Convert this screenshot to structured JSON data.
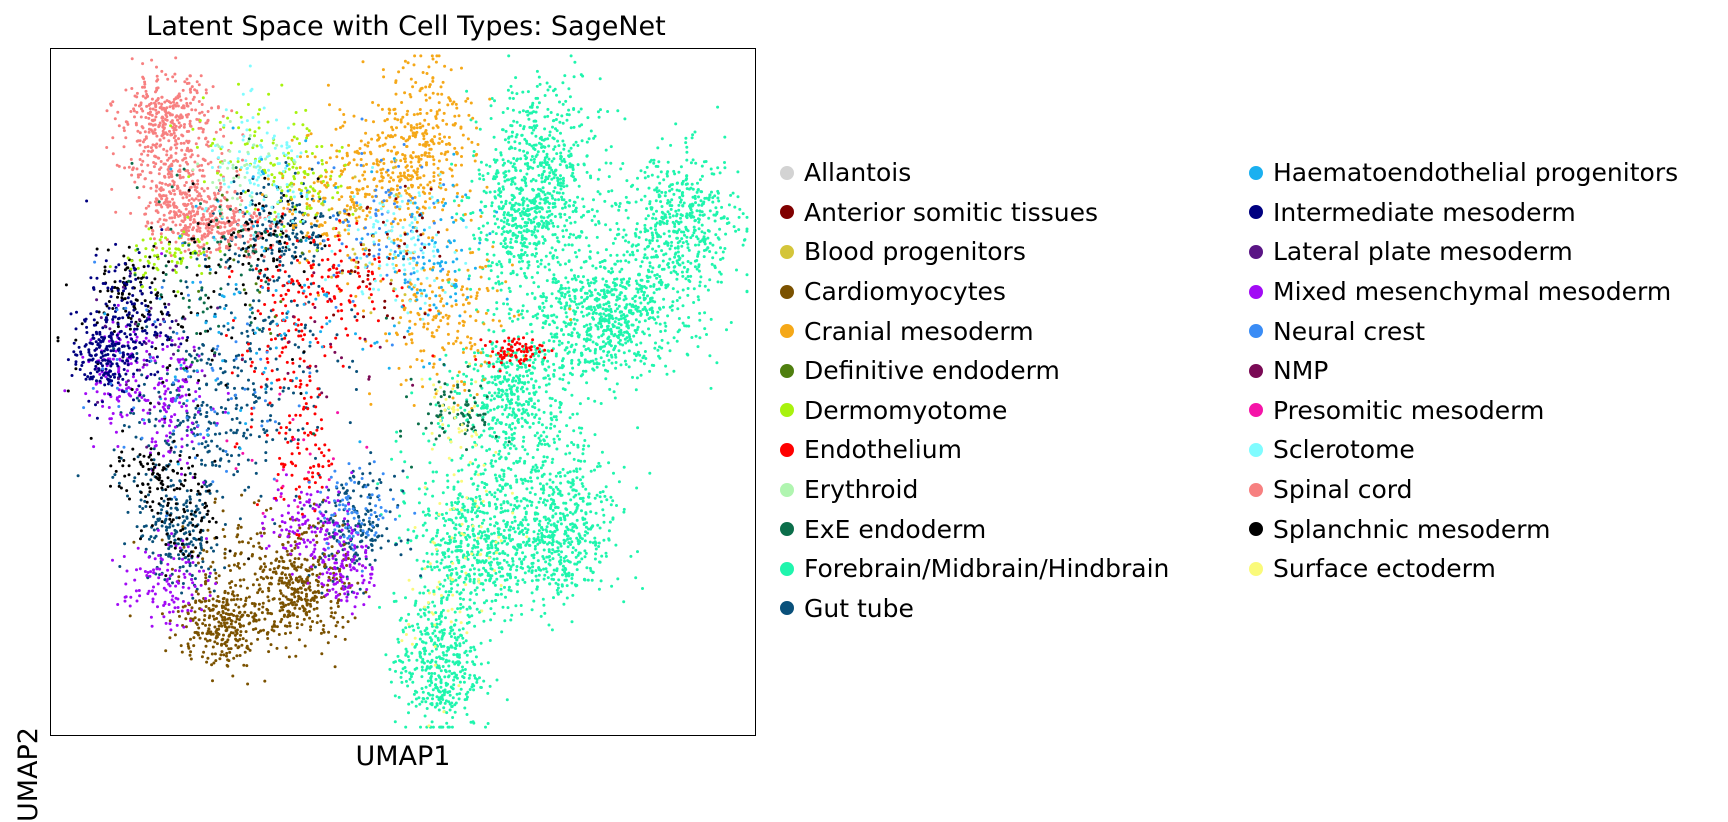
{
  "chart_data": {
    "type": "scatter",
    "title": "Latent Space with Cell Types: SageNet",
    "xlabel": "UMAP1",
    "ylabel": "UMAP2",
    "xticks": [],
    "yticks": [],
    "xlim": [
      0,
      100
    ],
    "ylim": [
      0,
      100
    ],
    "grid": false,
    "legend": "outside-right, two columns",
    "categories": [
      {
        "name": "Allantois",
        "color": "#d3d3d3",
        "n": 0,
        "clusters": []
      },
      {
        "name": "Anterior somitic tissues",
        "color": "#800000",
        "n": 40,
        "clusters": [
          [
            48,
            70,
            4,
            5
          ]
        ]
      },
      {
        "name": "Blood progenitors",
        "color": "#d4c53a",
        "n": 30,
        "clusters": [
          [
            45,
            72,
            4,
            6
          ]
        ]
      },
      {
        "name": "Cardiomyocytes",
        "color": "#7b5200",
        "n": 750,
        "clusters": [
          [
            30,
            22,
            6,
            5
          ],
          [
            24,
            16,
            3,
            3
          ],
          [
            36,
            21,
            3,
            4
          ]
        ]
      },
      {
        "name": "Cranial mesoderm",
        "color": "#f5a818",
        "n": 800,
        "clusters": [
          [
            50,
            84,
            5,
            5
          ],
          [
            42,
            78,
            5,
            5
          ],
          [
            56,
            60,
            5,
            6
          ],
          [
            54,
            88,
            3,
            6
          ]
        ]
      },
      {
        "name": "Definitive endoderm",
        "color": "#4f7f0f",
        "n": 20,
        "clusters": [
          [
            28,
            70,
            4,
            5
          ]
        ]
      },
      {
        "name": "Dermomyotome",
        "color": "#a8f20e",
        "n": 220,
        "clusters": [
          [
            29,
            86,
            5,
            5
          ],
          [
            36,
            80,
            3,
            3
          ],
          [
            17,
            70,
            3,
            2
          ]
        ]
      },
      {
        "name": "Endothelium",
        "color": "#ff0000",
        "n": 380,
        "clusters": [
          [
            36,
            41,
            2,
            5
          ],
          [
            33,
            55,
            4,
            6
          ],
          [
            43,
            66,
            4,
            5
          ],
          [
            35,
            66,
            4,
            4
          ],
          [
            66,
            56,
            2,
            1
          ]
        ]
      },
      {
        "name": "Erythroid",
        "color": "#b0f5b0",
        "n": 40,
        "clusters": [
          [
            27,
            82,
            3,
            3
          ]
        ]
      },
      {
        "name": "ExE endoderm",
        "color": "#0b6e4a",
        "n": 150,
        "clusters": [
          [
            22,
            68,
            6,
            8
          ],
          [
            58,
            47,
            3,
            3
          ]
        ]
      },
      {
        "name": "Forebrain/Midbrain/Hindbrain",
        "color": "#1ff5ad",
        "n": 4200,
        "clusters": [
          [
            70,
            84,
            4,
            6
          ],
          [
            67,
            74,
            4,
            5
          ],
          [
            83,
            65,
            6,
            6
          ],
          [
            90,
            75,
            4,
            5
          ],
          [
            77,
            60,
            5,
            4
          ],
          [
            66,
            50,
            4,
            5
          ],
          [
            66,
            36,
            7,
            6
          ],
          [
            72,
            28,
            4,
            5
          ],
          [
            60,
            26,
            4,
            5
          ],
          [
            55,
            10,
            3,
            5
          ]
        ]
      },
      {
        "name": "Gut tube",
        "color": "#09507a",
        "n": 950,
        "clusters": [
          [
            28,
            55,
            6,
            8
          ],
          [
            21,
            43,
            6,
            6
          ],
          [
            18,
            29,
            3,
            4
          ],
          [
            43,
            30,
            3,
            4
          ],
          [
            33,
            73,
            4,
            4
          ]
        ]
      },
      {
        "name": "Haematoendothelial progenitors",
        "color": "#1ab0f0",
        "n": 200,
        "clusters": [
          [
            30,
            63,
            8,
            10
          ],
          [
            54,
            68,
            4,
            6
          ]
        ]
      },
      {
        "name": "Intermediate mesoderm",
        "color": "#000080",
        "n": 330,
        "clusters": [
          [
            11,
            60,
            3,
            5
          ],
          [
            7,
            55,
            2,
            3
          ]
        ]
      },
      {
        "name": "Lateral plate mesoderm",
        "color": "#5a1585",
        "n": 40,
        "clusters": [
          [
            15,
            55,
            4,
            6
          ]
        ]
      },
      {
        "name": "Mixed mesenchymal mesoderm",
        "color": "#a20bf5",
        "n": 600,
        "clusters": [
          [
            10,
            53,
            3,
            4
          ],
          [
            17,
            48,
            3,
            5
          ],
          [
            16,
            22,
            3,
            3
          ],
          [
            37,
            31,
            3,
            3
          ],
          [
            42,
            24,
            2,
            3
          ]
        ]
      },
      {
        "name": "Neural crest",
        "color": "#3a8cf5",
        "n": 240,
        "clusters": [
          [
            20,
            52,
            7,
            9
          ],
          [
            44,
            33,
            3,
            3
          ],
          [
            46,
            75,
            4,
            6
          ]
        ]
      },
      {
        "name": "NMP",
        "color": "#7a0a55",
        "n": 20,
        "clusters": [
          [
            40,
            58,
            5,
            5
          ]
        ]
      },
      {
        "name": "Presomitic mesoderm",
        "color": "#f514a8",
        "n": 20,
        "clusters": [
          [
            33,
            40,
            5,
            5
          ]
        ]
      },
      {
        "name": "Sclerotome",
        "color": "#80fcff",
        "n": 220,
        "clusters": [
          [
            30,
            81,
            4,
            5
          ],
          [
            50,
            72,
            4,
            5
          ]
        ]
      },
      {
        "name": "Spinal cord",
        "color": "#f78080",
        "n": 900,
        "clusters": [
          [
            17,
            85,
            4,
            5
          ],
          [
            19,
            78,
            3,
            3
          ],
          [
            24,
            74,
            4,
            2
          ],
          [
            16,
            90,
            3,
            3
          ]
        ]
      },
      {
        "name": "Splanchnic mesoderm",
        "color": "#000000",
        "n": 400,
        "clusters": [
          [
            11,
            65,
            3,
            3
          ],
          [
            15,
            38,
            3,
            2
          ],
          [
            19,
            31,
            3,
            4
          ],
          [
            16,
            58,
            7,
            8
          ],
          [
            30,
            73,
            4,
            4
          ]
        ]
      },
      {
        "name": "Surface ectoderm",
        "color": "#fafa7a",
        "n": 120,
        "clusters": [
          [
            55,
            18,
            3,
            6
          ],
          [
            60,
            30,
            3,
            5
          ],
          [
            57,
            45,
            2,
            5
          ]
        ]
      }
    ]
  }
}
